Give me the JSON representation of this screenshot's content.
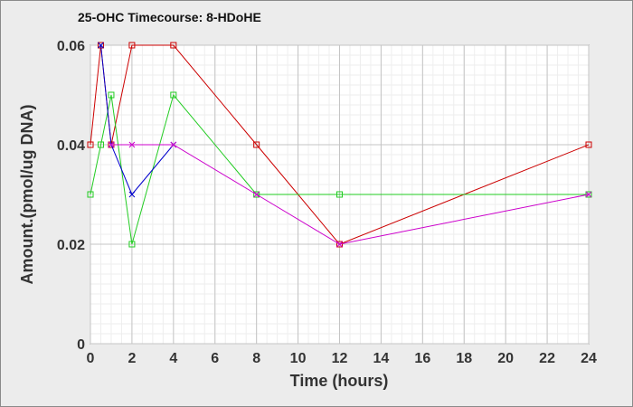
{
  "chart_data": {
    "type": "line",
    "title": "25-OHC Timecourse: 8-HDoHE",
    "xlabel": "Time (hours)",
    "ylabel": "Amount.(pmol/ug DNA)",
    "xlim": [
      0,
      24
    ],
    "ylim": [
      0,
      0.06
    ],
    "x_ticks": [
      0,
      2,
      4,
      6,
      8,
      10,
      12,
      14,
      16,
      18,
      20,
      22,
      24
    ],
    "y_ticks": [
      0,
      0.02,
      0.04,
      0.06
    ],
    "y_tick_labels": [
      "0",
      "0.02",
      "0.04",
      "0.06"
    ],
    "grid": true,
    "series": [
      {
        "color": "#cc0000",
        "marker": "square",
        "x": [
          0,
          0.5,
          1,
          2,
          4,
          8,
          12,
          24
        ],
        "y": [
          0.04,
          0.06,
          0.04,
          0.06,
          0.06,
          0.04,
          0.02,
          0.04
        ]
      },
      {
        "color": "#22cc22",
        "marker": "square",
        "x": [
          0,
          0.5,
          1,
          2,
          4,
          8,
          12,
          24
        ],
        "y": [
          0.03,
          0.04,
          0.05,
          0.02,
          0.05,
          0.03,
          0.03,
          0.03
        ]
      },
      {
        "color": "#0000cc",
        "marker": "x",
        "x": [
          0.5,
          1,
          2,
          4
        ],
        "y": [
          0.06,
          0.04,
          0.03,
          0.04
        ]
      },
      {
        "color": "#cc00cc",
        "marker": "x",
        "x": [
          1,
          2,
          4,
          8,
          12,
          24
        ],
        "y": [
          0.04,
          0.04,
          0.04,
          0.03,
          0.02,
          0.03
        ]
      }
    ]
  }
}
